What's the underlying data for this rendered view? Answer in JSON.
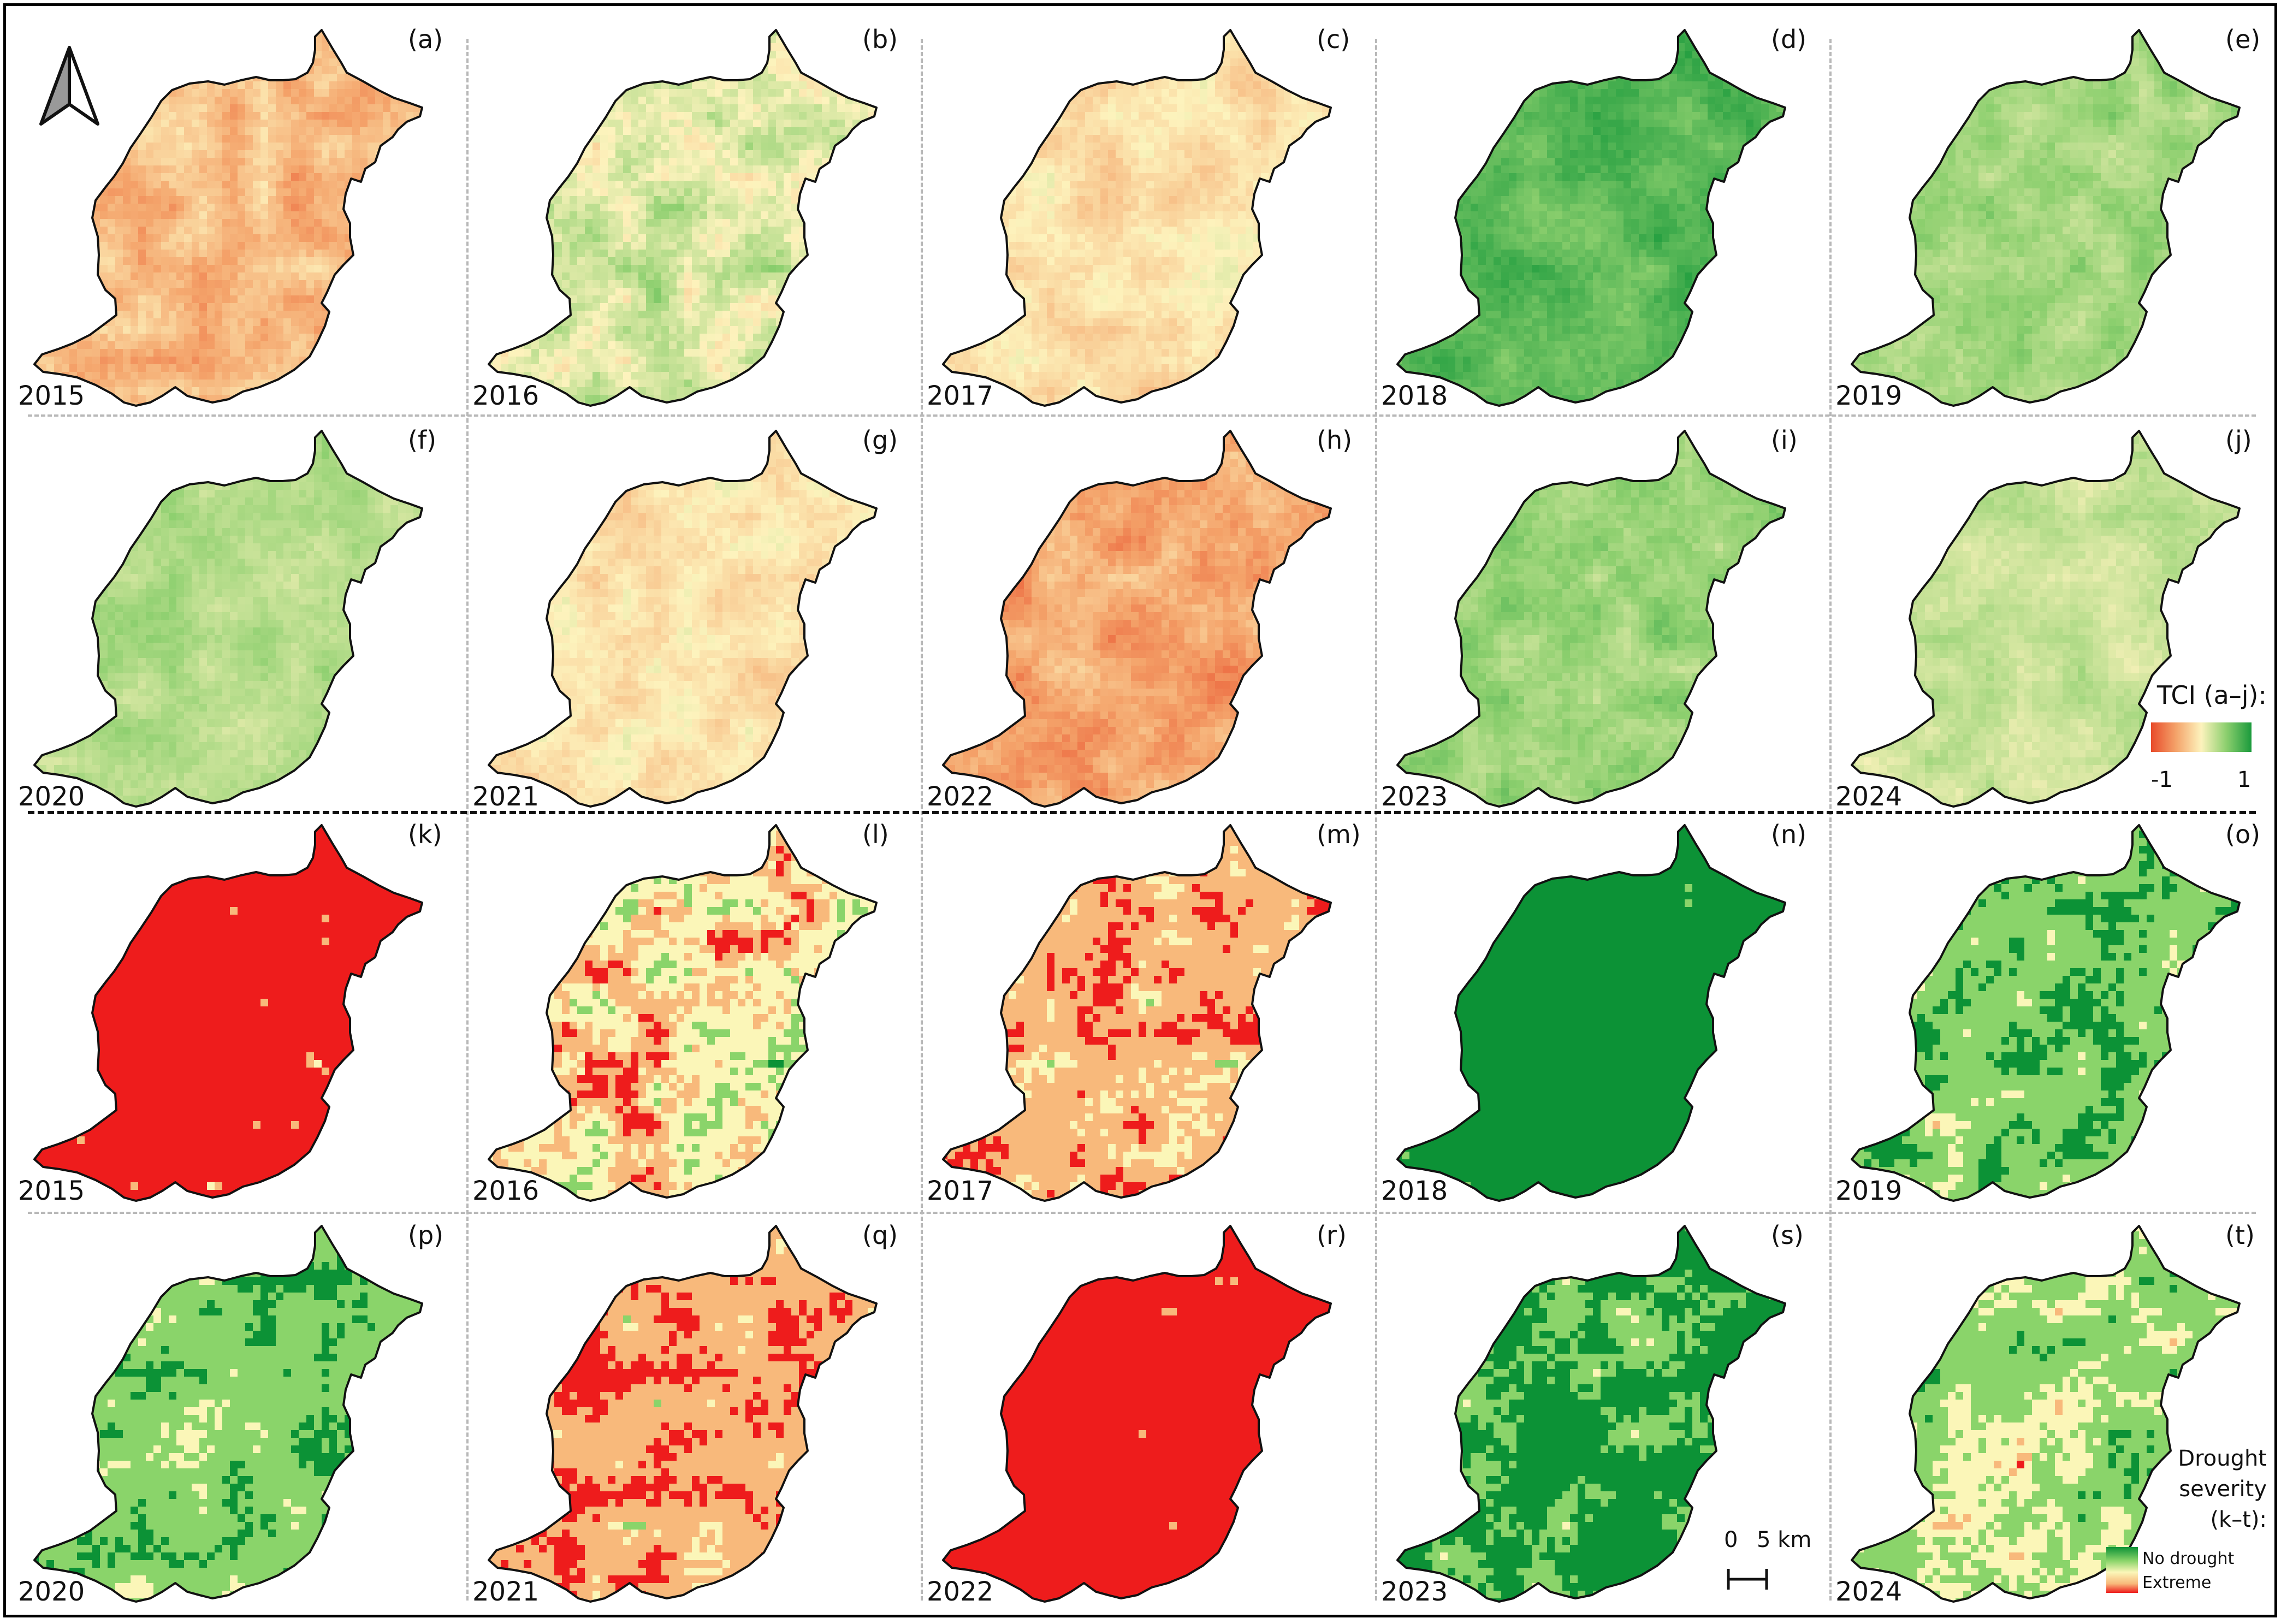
{
  "panels": [
    {
      "letter": "(a)",
      "year": "2015",
      "scheme": "tci",
      "base": [
        0.32,
        0.08
      ]
    },
    {
      "letter": "(b)",
      "year": "2016",
      "scheme": "tci",
      "base": [
        0.58,
        0.1
      ]
    },
    {
      "letter": "(c)",
      "year": "2017",
      "scheme": "tci",
      "base": [
        0.44,
        0.06
      ]
    },
    {
      "letter": "(d)",
      "year": "2018",
      "scheme": "tci",
      "base": [
        0.86,
        0.06
      ]
    },
    {
      "letter": "(e)",
      "year": "2019",
      "scheme": "tci",
      "base": [
        0.7,
        0.06
      ]
    },
    {
      "letter": "(f)",
      "year": "2020",
      "scheme": "tci",
      "base": [
        0.66,
        0.05
      ]
    },
    {
      "letter": "(g)",
      "year": "2021",
      "scheme": "tci",
      "base": [
        0.45,
        0.06
      ]
    },
    {
      "letter": "(h)",
      "year": "2022",
      "scheme": "tci",
      "base": [
        0.27,
        0.08
      ]
    },
    {
      "letter": "(i)",
      "year": "2023",
      "scheme": "tci",
      "base": [
        0.72,
        0.06
      ]
    },
    {
      "letter": "(j)",
      "year": "2024",
      "scheme": "tci",
      "base": [
        0.62,
        0.05
      ]
    },
    {
      "letter": "(k)",
      "year": "2015",
      "scheme": "severity",
      "weights": [
        0.01,
        0.02,
        0.05,
        0.07,
        0.85
      ]
    },
    {
      "letter": "(l)",
      "year": "2016",
      "scheme": "severity",
      "weights": [
        0.07,
        0.22,
        0.24,
        0.22,
        0.25
      ]
    },
    {
      "letter": "(m)",
      "year": "2017",
      "scheme": "severity",
      "weights": [
        0.01,
        0.1,
        0.17,
        0.35,
        0.37
      ]
    },
    {
      "letter": "(n)",
      "year": "2018",
      "scheme": "severity",
      "weights": [
        0.93,
        0.07,
        0.0,
        0.0,
        0.0
      ]
    },
    {
      "letter": "(o)",
      "year": "2019",
      "scheme": "severity",
      "weights": [
        0.34,
        0.4,
        0.19,
        0.05,
        0.02
      ]
    },
    {
      "letter": "(p)",
      "year": "2020",
      "scheme": "severity",
      "weights": [
        0.32,
        0.45,
        0.19,
        0.03,
        0.01
      ]
    },
    {
      "letter": "(q)",
      "year": "2021",
      "scheme": "severity",
      "weights": [
        0.0,
        0.06,
        0.14,
        0.4,
        0.4
      ]
    },
    {
      "letter": "(r)",
      "year": "2022",
      "scheme": "severity",
      "weights": [
        0.0,
        0.0,
        0.02,
        0.08,
        0.9
      ]
    },
    {
      "letter": "(s)",
      "year": "2023",
      "scheme": "severity",
      "weights": [
        0.52,
        0.33,
        0.12,
        0.03,
        0.0
      ]
    },
    {
      "letter": "(t)",
      "year": "2024",
      "scheme": "severity",
      "weights": [
        0.16,
        0.38,
        0.3,
        0.12,
        0.04
      ]
    }
  ],
  "legend_tci": {
    "title": "TCI (a–j):",
    "min_label": "-1",
    "max_label": "1"
  },
  "legend_severity": {
    "title_line1": "Drought",
    "title_line2": "severity",
    "title_line3": "(k–t):",
    "top_label": "No drought",
    "bottom_label": "Extreme"
  },
  "scalebar": {
    "zero": "0",
    "distance": "5 km"
  },
  "north_arrow_icon": "north-arrow-icon",
  "colors": {
    "tci_ramp": [
      "#e84b2a",
      "#f4a36a",
      "#fdf3bd",
      "#8ccf6e",
      "#1a9a3c"
    ],
    "severity_classes": [
      "#0c9236",
      "#8ad46a",
      "#fbf6b8",
      "#f8b97b",
      "#ee1c1c"
    ],
    "outline": "#111111"
  }
}
